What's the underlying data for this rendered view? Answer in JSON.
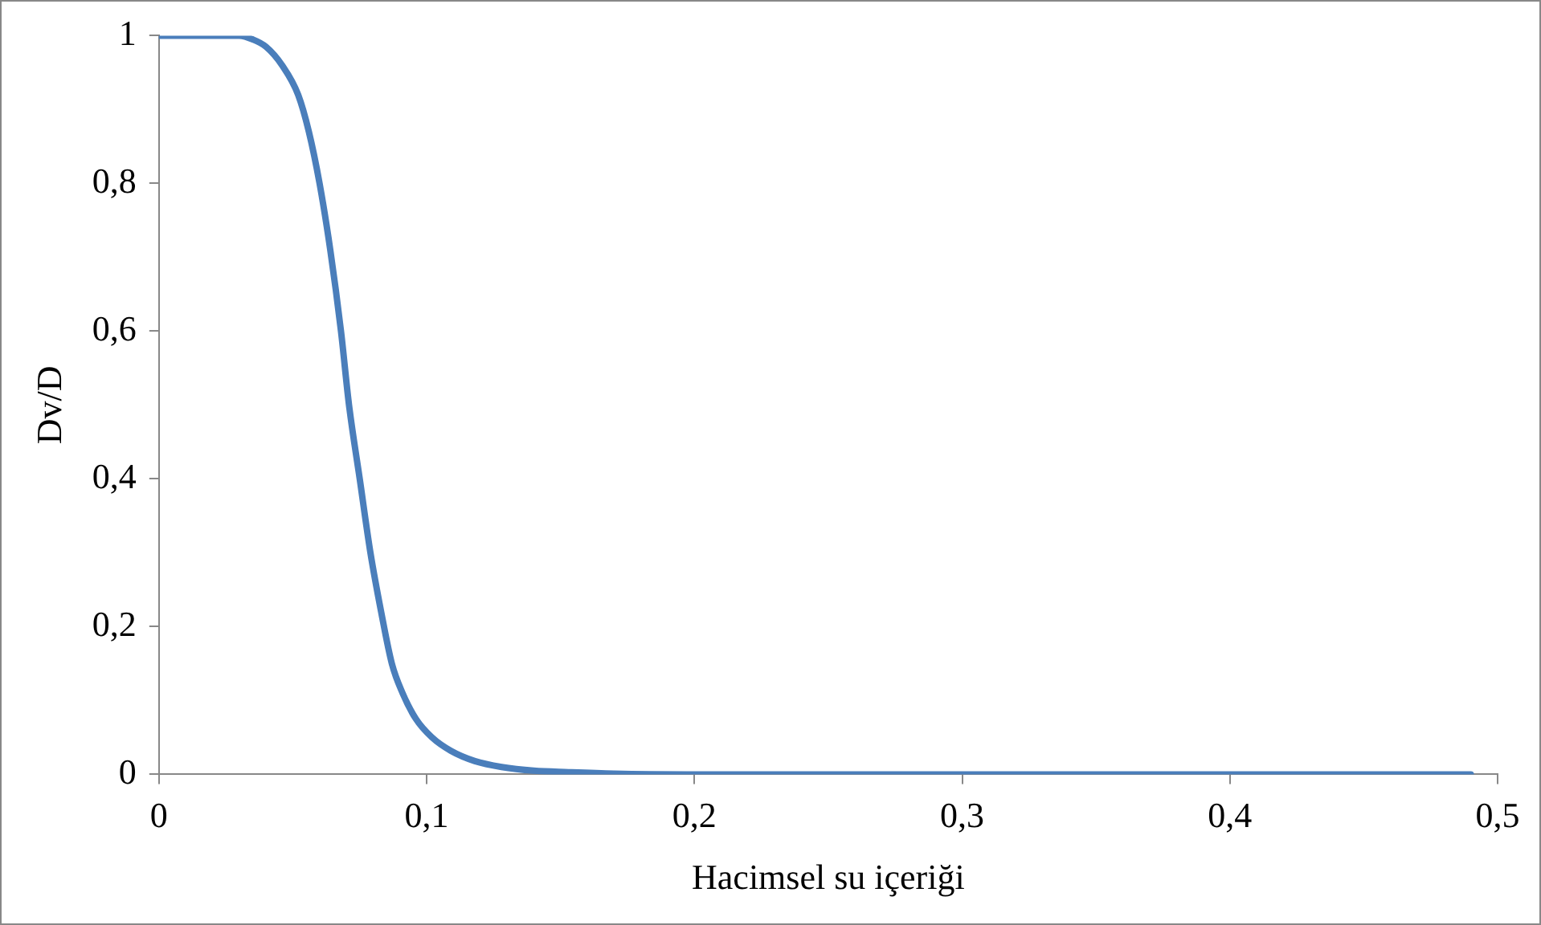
{
  "chart_data": {
    "type": "line",
    "xlabel": "Hacimsel su içeriği",
    "ylabel": "Dv/D",
    "x": [
      0,
      0.01,
      0.02,
      0.03,
      0.035,
      0.04,
      0.046,
      0.052,
      0.056,
      0.06,
      0.064,
      0.068,
      0.071,
      0.075,
      0.079,
      0.083,
      0.087,
      0.091,
      0.096,
      0.102,
      0.109,
      0.118,
      0.128,
      0.14,
      0.153,
      0.17,
      0.197,
      0.25,
      0.3,
      0.35,
      0.4,
      0.45,
      0.49
    ],
    "series": [
      {
        "color": "#4a7ebb",
        "values": [
          1,
          1,
          1,
          1,
          0.995,
          0.985,
          0.96,
          0.92,
          0.87,
          0.8,
          0.71,
          0.6,
          0.5,
          0.4,
          0.3,
          0.22,
          0.15,
          0.11,
          0.075,
          0.05,
          0.032,
          0.018,
          0.01,
          0.005,
          0.003,
          0.001,
          0,
          0,
          0,
          0,
          0,
          0,
          0
        ]
      }
    ],
    "xlim": [
      0,
      0.5
    ],
    "xticks": [
      0,
      {
        "value": 0.1,
        "label": "0,1"
      },
      {
        "value": 0.2,
        "label": "0,2"
      },
      {
        "value": 0.3,
        "label": "0,3"
      },
      {
        "value": 0.4,
        "label": "0,4"
      },
      {
        "value": 0.5,
        "label": "0,5"
      }
    ],
    "ylim": [
      0,
      1
    ],
    "yticks": [
      0,
      {
        "value": 0.2,
        "label": "0,2"
      },
      {
        "value": 0.4,
        "label": "0,4"
      },
      {
        "value": 0.6,
        "label": "0,6"
      },
      {
        "value": 0.8,
        "label": "0,8"
      },
      1
    ],
    "grid": false,
    "legend": false,
    "marker": "none",
    "line_style": "solid"
  }
}
